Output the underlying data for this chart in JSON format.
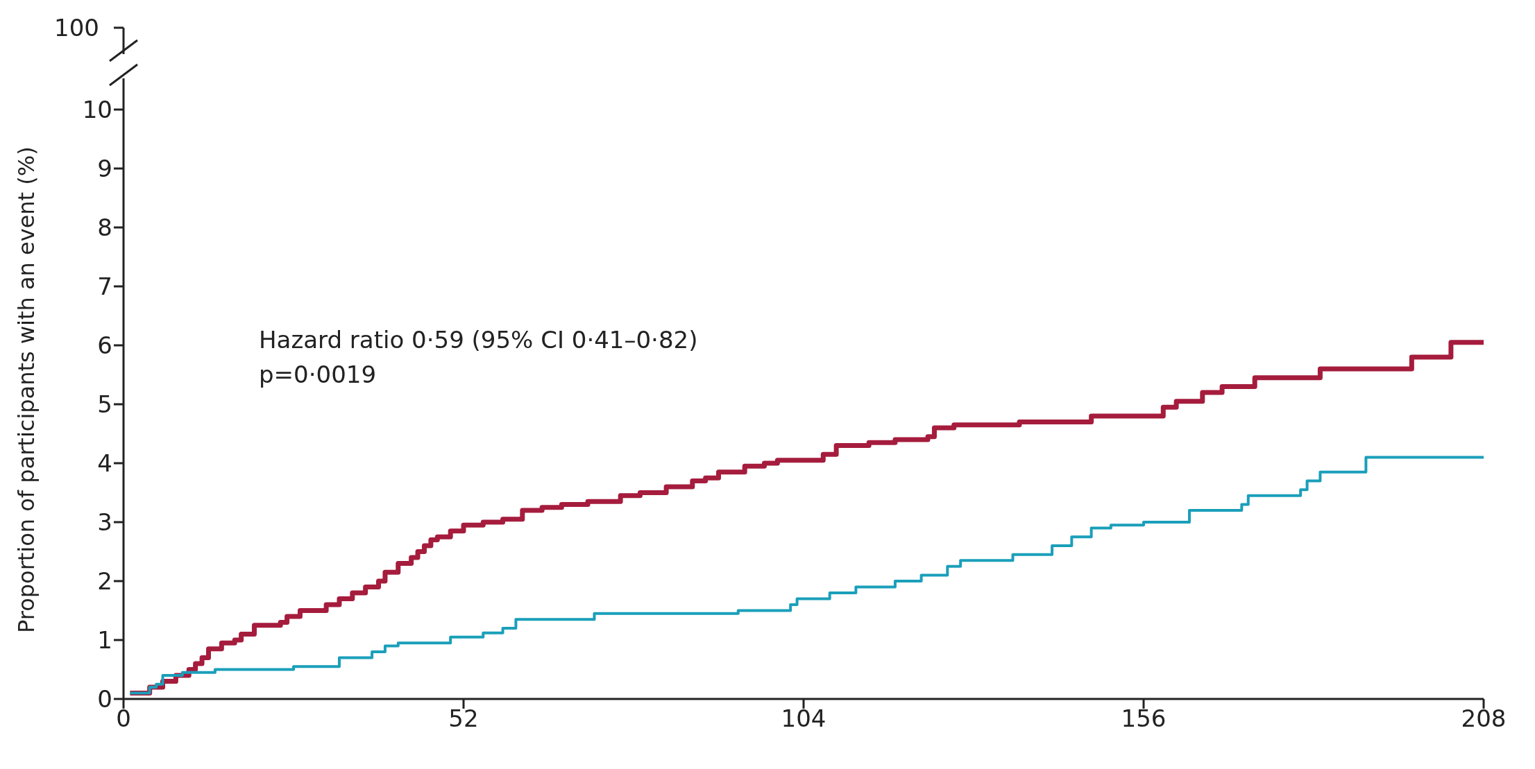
{
  "chart_data": {
    "type": "step",
    "ylabel": "Proportion of participants with an event (%)",
    "annotations": [
      "100",
      "Hazard ratio 0·59 (95% CI 0·41–0·82)",
      "p=0·0019"
    ],
    "xlim": [
      0,
      208
    ],
    "xticks": [
      0,
      52,
      104,
      156,
      208
    ],
    "ylim": [
      0,
      10
    ],
    "yticks": [
      0,
      1,
      2,
      3,
      4,
      5,
      6,
      7,
      8,
      9,
      10
    ],
    "grid": false,
    "legend": false,
    "marker": "none",
    "line_style": "solid",
    "series": [
      {
        "color": "#a51c3d",
        "x": [
          1,
          4,
          6,
          8,
          10,
          11,
          12,
          13,
          15,
          17,
          18,
          20,
          24,
          25,
          27,
          31,
          33,
          35,
          37,
          39,
          40,
          42,
          44,
          45,
          46,
          47,
          48,
          50,
          52,
          55,
          58,
          61,
          64,
          67,
          71,
          76,
          79,
          83,
          87,
          89,
          91,
          95,
          98,
          100,
          107,
          109,
          114,
          118,
          123,
          124,
          127,
          137,
          148,
          159,
          161,
          165,
          168,
          173,
          183,
          197,
          203,
          208
        ],
        "values": [
          0.1,
          0.2,
          0.3,
          0.4,
          0.5,
          0.6,
          0.7,
          0.85,
          0.95,
          1.0,
          1.1,
          1.25,
          1.3,
          1.4,
          1.5,
          1.6,
          1.7,
          1.8,
          1.9,
          2.0,
          2.15,
          2.3,
          2.4,
          2.5,
          2.6,
          2.7,
          2.75,
          2.85,
          2.95,
          3.0,
          3.05,
          3.2,
          3.25,
          3.3,
          3.35,
          3.45,
          3.5,
          3.6,
          3.7,
          3.75,
          3.85,
          3.95,
          4.0,
          4.05,
          4.15,
          4.3,
          4.35,
          4.4,
          4.45,
          4.6,
          4.65,
          4.7,
          4.8,
          4.95,
          5.05,
          5.2,
          5.3,
          5.45,
          5.6,
          5.8,
          6.05,
          6.05
        ]
      },
      {
        "color": "#1a9fba",
        "x": [
          1,
          4,
          5,
          6,
          9,
          14,
          26,
          33,
          38,
          40,
          42,
          50,
          55,
          58,
          60,
          72,
          94,
          102,
          103,
          108,
          112,
          118,
          122,
          126,
          128,
          136,
          142,
          145,
          148,
          151,
          156,
          163,
          171,
          172,
          180,
          181,
          183,
          190,
          208
        ],
        "values": [
          0.1,
          0.2,
          0.25,
          0.4,
          0.45,
          0.5,
          0.55,
          0.7,
          0.8,
          0.9,
          0.95,
          1.05,
          1.12,
          1.2,
          1.35,
          1.45,
          1.5,
          1.6,
          1.7,
          1.8,
          1.9,
          2.0,
          2.1,
          2.25,
          2.35,
          2.45,
          2.6,
          2.75,
          2.9,
          2.95,
          3.0,
          3.2,
          3.3,
          3.45,
          3.55,
          3.7,
          3.85,
          4.1,
          4.1
        ]
      }
    ]
  }
}
